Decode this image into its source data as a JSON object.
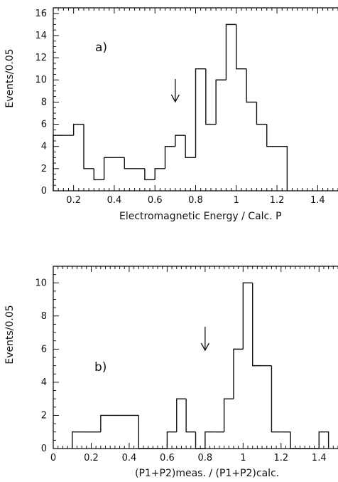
{
  "chart_data": [
    {
      "type": "histogram",
      "panel_label": "a)",
      "xlabel": "Electromagnetic Energy / Calc. P",
      "ylabel": "Events/0.05",
      "xlim": [
        0.1,
        1.5
      ],
      "ylim": [
        0,
        16.5
      ],
      "xticks": [
        0.2,
        0.4,
        0.6,
        0.8,
        1,
        1.2,
        1.4
      ],
      "xtick_labels": [
        "0.2",
        "0.4",
        "0.6",
        "0.8",
        "1",
        "1.2",
        "1.4"
      ],
      "yticks": [
        0,
        2,
        4,
        6,
        8,
        10,
        12,
        14,
        16
      ],
      "ytick_labels": [
        "0",
        "2",
        "4",
        "6",
        "8",
        "10",
        "12",
        "14",
        "16"
      ],
      "bin_width": 0.05,
      "bin_edges": [
        0.1,
        0.15,
        0.2,
        0.25,
        0.3,
        0.35,
        0.4,
        0.45,
        0.5,
        0.55,
        0.6,
        0.65,
        0.7,
        0.75,
        0.8,
        0.85,
        0.9,
        0.95,
        1.0,
        1.05,
        1.1,
        1.15,
        1.2,
        1.25
      ],
      "values": [
        5,
        5,
        6,
        2,
        1,
        3,
        3,
        2,
        2,
        1,
        2,
        4,
        5,
        3,
        11,
        6,
        10,
        15,
        11,
        8,
        6,
        4,
        4
      ],
      "cut_arrow_x": 0.7
    },
    {
      "type": "histogram",
      "panel_label": "b)",
      "xlabel": "(P1+P2)meas. / (P1+P2)calc.",
      "ylabel": "Events/0.05",
      "xlim": [
        0,
        1.5
      ],
      "ylim": [
        0,
        11
      ],
      "xticks": [
        0,
        0.2,
        0.4,
        0.6,
        0.8,
        1,
        1.2,
        1.4
      ],
      "xtick_labels": [
        "0",
        "0.2",
        "0.4",
        "0.6",
        "0.8",
        "1",
        "1.2",
        "1.4"
      ],
      "yticks": [
        0,
        2,
        4,
        6,
        8,
        10
      ],
      "ytick_labels": [
        "0",
        "2",
        "4",
        "6",
        "8",
        "10"
      ],
      "bin_width": 0.05,
      "bin_edges": [
        0.1,
        0.15,
        0.2,
        0.25,
        0.3,
        0.35,
        0.4,
        0.45,
        0.5,
        0.55,
        0.6,
        0.65,
        0.7,
        0.75,
        0.8,
        0.85,
        0.9,
        0.95,
        1.0,
        1.05,
        1.1,
        1.15,
        1.2,
        1.25,
        1.3,
        1.35,
        1.4,
        1.45
      ],
      "values": [
        1,
        1,
        1,
        2,
        2,
        2,
        2,
        0,
        0,
        0,
        1,
        3,
        1,
        0,
        1,
        1,
        3,
        6,
        10,
        5,
        5,
        1,
        1,
        0,
        0,
        0,
        1
      ],
      "cut_arrow_x": 0.8
    }
  ]
}
